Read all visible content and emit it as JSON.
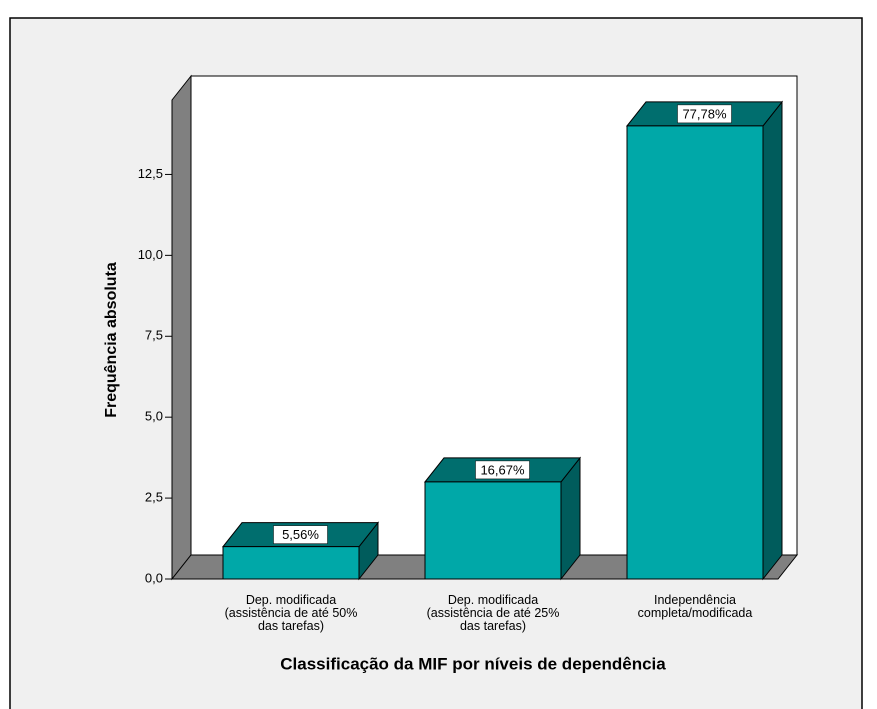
{
  "chart_data": {
    "type": "bar3d",
    "x_label": "Classificação da MIF por níveis de dependência",
    "y_label": "Frequência absoluta",
    "categories": [
      "Dep. modificada\n(assistência de até 50%\ndas tarefas)",
      "Dep. modificada\n(assistência de até 25%\ndas tarefas)",
      "Independência\ncompleta/modificada"
    ],
    "values": [
      1,
      3,
      14
    ],
    "value_labels": [
      "5,56%",
      "16,67%",
      "77,78%"
    ],
    "color": "#00a8a8",
    "ylim": [
      0,
      14.8
    ],
    "yticks": [
      {
        "value": 0,
        "label": "0,0"
      },
      {
        "value": 2.5,
        "label": "2,5"
      },
      {
        "value": 5,
        "label": "5,0"
      },
      {
        "value": 7.5,
        "label": "7,5"
      },
      {
        "value": 10,
        "label": "10,0"
      },
      {
        "value": 12.5,
        "label": "12,5"
      }
    ]
  }
}
